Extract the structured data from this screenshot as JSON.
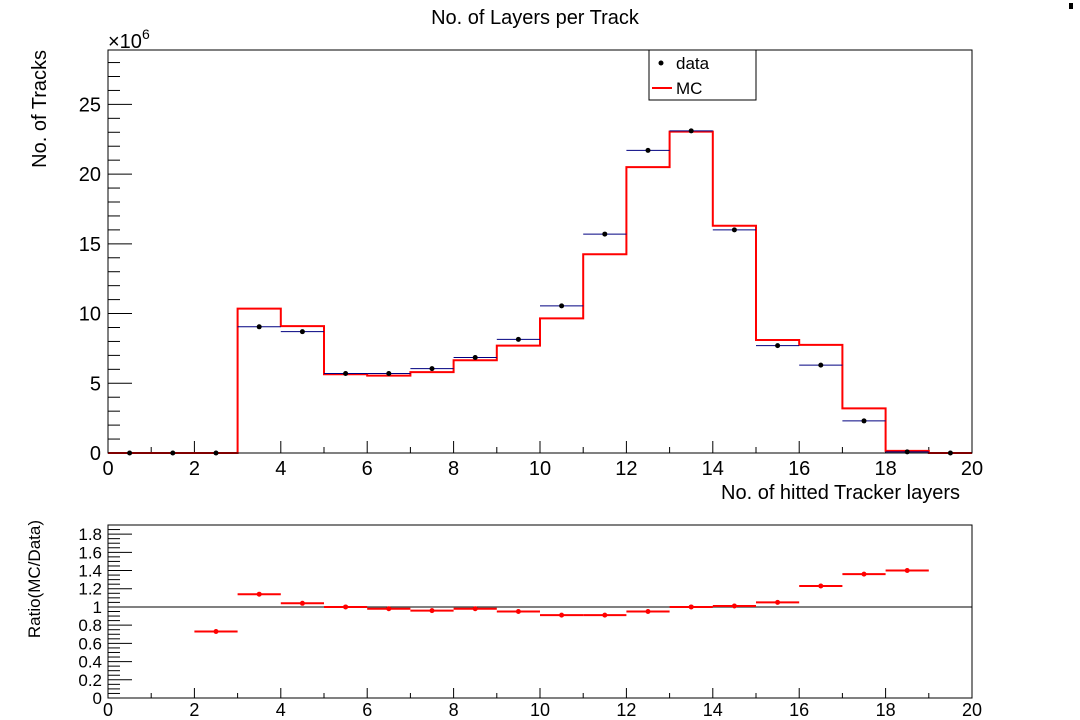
{
  "chart_data": [
    {
      "type": "histogram",
      "title": "No. of Layers per Track",
      "xlabel": "No. of hitted Tracker layers",
      "ylabel": "No. of Tracks",
      "y_multiplier_label": "×10",
      "y_multiplier_exponent": "6",
      "xlim": [
        0,
        20
      ],
      "ylim": [
        0,
        28.9
      ],
      "x_ticks": [
        "0",
        "2",
        "4",
        "6",
        "8",
        "10",
        "12",
        "14",
        "16",
        "18",
        "20"
      ],
      "y_ticks": [
        "0",
        "5",
        "10",
        "15",
        "20",
        "25"
      ],
      "y_tick_values": [
        0,
        5,
        10,
        15,
        20,
        25
      ],
      "legend": {
        "placement": "top-center",
        "entries": [
          "data",
          "MC"
        ]
      },
      "series": [
        {
          "name": "data",
          "style": "points",
          "color": "#000000",
          "error_bar_color": "#000080",
          "points": [
            [
              0.5,
              0
            ],
            [
              1.5,
              0
            ],
            [
              2.5,
              0
            ],
            [
              3.5,
              9.05
            ],
            [
              4.5,
              8.7
            ],
            [
              5.5,
              5.7
            ],
            [
              6.5,
              5.7
            ],
            [
              7.5,
              6.05
            ],
            [
              8.5,
              6.85
            ],
            [
              9.5,
              8.15
            ],
            [
              10.5,
              10.55
            ],
            [
              11.5,
              15.7
            ],
            [
              12.5,
              21.7
            ],
            [
              13.5,
              23.1
            ],
            [
              14.5,
              16.0
            ],
            [
              15.5,
              7.7
            ],
            [
              16.5,
              6.3
            ],
            [
              17.5,
              2.3
            ],
            [
              18.5,
              0.08
            ],
            [
              19.5,
              0
            ]
          ]
        },
        {
          "name": "MC",
          "style": "step",
          "color": "#ff0000",
          "bin_edges": [
            0,
            1,
            2,
            3,
            4,
            5,
            6,
            7,
            8,
            9,
            10,
            11,
            12,
            13,
            14,
            15,
            16,
            17,
            18,
            19,
            20
          ],
          "values": [
            0,
            0,
            0,
            10.35,
            9.1,
            5.65,
            5.55,
            5.8,
            6.65,
            7.7,
            9.65,
            14.25,
            20.5,
            23.05,
            16.3,
            8.1,
            7.75,
            3.2,
            0.15,
            0
          ]
        }
      ]
    },
    {
      "type": "scatter",
      "title": "",
      "xlabel": "",
      "ylabel": "Ratio(MC/Data)",
      "xlim": [
        0,
        20
      ],
      "ylim": [
        0,
        1.9
      ],
      "x_ticks": [
        "0",
        "2",
        "4",
        "6",
        "8",
        "10",
        "12",
        "14",
        "16",
        "18",
        "20"
      ],
      "y_ticks": [
        "0",
        "0.2",
        "0.4",
        "0.6",
        "0.8",
        "1",
        "1.2",
        "1.4",
        "1.6",
        "1.8"
      ],
      "y_tick_values": [
        0,
        0.2,
        0.4,
        0.6,
        0.8,
        1,
        1.2,
        1.4,
        1.6,
        1.8
      ],
      "reference_line": 1,
      "series": [
        {
          "name": "ratio",
          "color": "#ff0000",
          "points": [
            [
              2.5,
              0.73
            ],
            [
              3.5,
              1.14
            ],
            [
              4.5,
              1.04
            ],
            [
              5.5,
              1.0
            ],
            [
              6.5,
              0.98
            ],
            [
              7.5,
              0.96
            ],
            [
              8.5,
              0.98
            ],
            [
              9.5,
              0.95
            ],
            [
              10.5,
              0.91
            ],
            [
              11.5,
              0.91
            ],
            [
              12.5,
              0.95
            ],
            [
              13.5,
              1.0
            ],
            [
              14.5,
              1.01
            ],
            [
              15.5,
              1.05
            ],
            [
              16.5,
              1.23
            ],
            [
              17.5,
              1.36
            ],
            [
              18.5,
              1.4
            ]
          ]
        }
      ]
    }
  ]
}
